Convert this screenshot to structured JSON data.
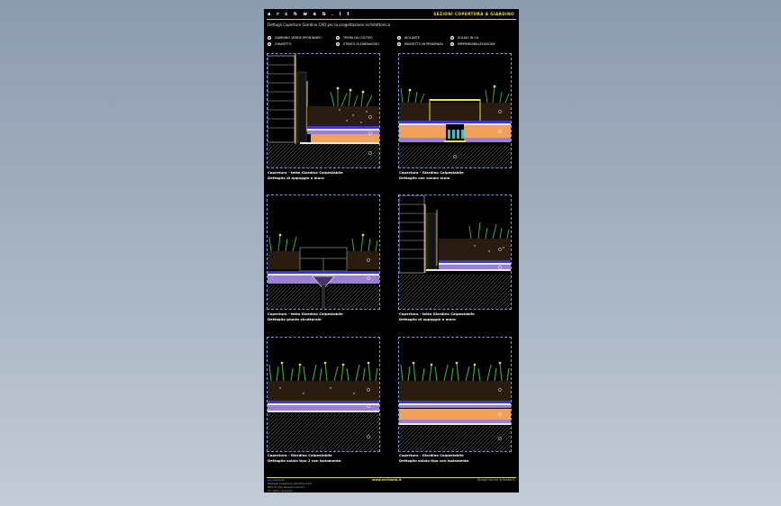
{
  "header": {
    "brand": "a r c h w e b . i t",
    "category": "SEZIONI COPERTURA A GIARDINO",
    "subtitle": "Dettagli Coperture Giardino CAD per la progettazione architettonica"
  },
  "legend": [
    {
      "num": "1",
      "label": "GIARDINO VERDE SPONTANEO"
    },
    {
      "num": "2",
      "label": "GHIAIETTO"
    },
    {
      "num": "3",
      "label": "TERRA DA COLTIVO"
    },
    {
      "num": "4",
      "label": "STRATO DI DRENAGGIO"
    },
    {
      "num": "5",
      "label": "ISOLANTE"
    },
    {
      "num": "6",
      "label": "MASSETTO IN PENDENZA"
    },
    {
      "num": "7",
      "label": "SOLAIO IN CA"
    },
    {
      "num": "8",
      "label": "IMPERMEABILIZZAZIONE"
    }
  ],
  "panels": [
    {
      "line1": "Copertura - tetto Giardino Calpestabile",
      "line2": "Dettaglio di appoggio a muro"
    },
    {
      "line1": "Copertura - Giardino Calpestabile",
      "line2": "Dettaglio con canale scolo"
    },
    {
      "line1": "Copertura - tetto Giardino Calpestabile",
      "line2": "Dettaglio giunto strutturale"
    },
    {
      "line1": "Copertura - tetto Giardino Calpestabile",
      "line2": "Dettaglio di appoggio a muro"
    },
    {
      "line1": "Copertura - Giardino Calpestabile",
      "line2": "Dettaglio solaio tipo 2 con isolamento"
    },
    {
      "line1": "Copertura - Giardino Calpestabile",
      "line2": "Dettaglio solaio tipo con isolamento"
    }
  ],
  "footer": {
    "left": [
      "Le coperture",
      "Dettagli Coperture Giardino CAD",
      "Blocchi per disegno tecnico",
      "All rights reserved"
    ],
    "middle": "www.archweb.it",
    "right": "Disegni tecnici archweb.it"
  },
  "colors": {
    "frame": "#e8d843",
    "panel_border": "#6aa0e0",
    "plants": "#3fae3a",
    "flowers": "#f1e33a",
    "insulation": "#f0a15a",
    "membrane": "#3b35d6",
    "drainage": "#9b7fd0"
  }
}
